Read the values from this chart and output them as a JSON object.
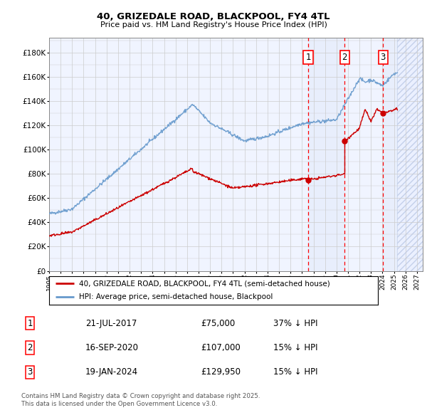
{
  "title1": "40, GRIZEDALE ROAD, BLACKPOOL, FY4 4TL",
  "title2": "Price paid vs. HM Land Registry's House Price Index (HPI)",
  "ylabel_ticks": [
    "£0",
    "£20K",
    "£40K",
    "£60K",
    "£80K",
    "£100K",
    "£120K",
    "£140K",
    "£160K",
    "£180K"
  ],
  "ytick_vals": [
    0,
    20000,
    40000,
    60000,
    80000,
    100000,
    120000,
    140000,
    160000,
    180000
  ],
  "ylim": [
    0,
    192000
  ],
  "xlim_start": 1995.0,
  "xlim_end": 2027.5,
  "sale1": {
    "date_num": 2017.54,
    "price": 75000,
    "label": "1",
    "date_str": "21-JUL-2017",
    "price_str": "£75,000",
    "pct": "37% ↓ HPI"
  },
  "sale2": {
    "date_num": 2020.71,
    "price": 107000,
    "label": "2",
    "date_str": "16-SEP-2020",
    "price_str": "£107,000",
    "pct": "15% ↓ HPI"
  },
  "sale3": {
    "date_num": 2024.05,
    "price": 129950,
    "label": "3",
    "date_str": "19-JAN-2024",
    "price_str": "£129,950",
    "pct": "15% ↓ HPI"
  },
  "hpi_color": "#6699cc",
  "price_color": "#cc0000",
  "legend_label_price": "40, GRIZEDALE ROAD, BLACKPOOL, FY4 4TL (semi-detached house)",
  "legend_label_hpi": "HPI: Average price, semi-detached house, Blackpool",
  "footer1": "Contains HM Land Registry data © Crown copyright and database right 2025.",
  "footer2": "This data is licensed under the Open Government Licence v3.0.",
  "future_start": 2025.25,
  "grid_color": "#cccccc",
  "bg_color": "#f0f4ff"
}
